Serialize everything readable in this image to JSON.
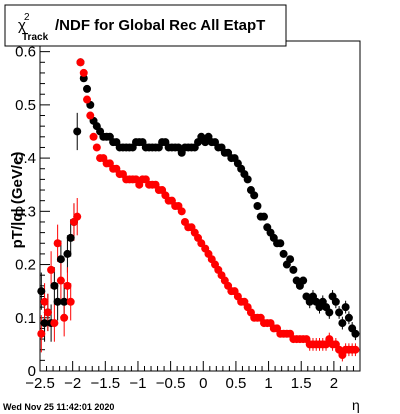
{
  "window": {
    "timestamp": "Wed Nov 25 11:42:01 2020"
  },
  "chart_data": {
    "type": "scatter",
    "title_base": "χ",
    "title_sup": "2",
    "title_sub": "Track",
    "title_rest": "/NDF for Global Rec All EtapT",
    "xlabel": "η",
    "ylabel": "pT/|q| (GeV/c)",
    "xlim": [
      -2.5,
      2.4
    ],
    "ylim": [
      0,
      0.62
    ],
    "xticks": [
      {
        "v": -2.5,
        "label": "−2.5"
      },
      {
        "v": -2,
        "label": "−2"
      },
      {
        "v": -1.5,
        "label": "−1.5"
      },
      {
        "v": -1,
        "label": "−1"
      },
      {
        "v": -0.5,
        "label": "−0.5"
      },
      {
        "v": 0,
        "label": "0"
      },
      {
        "v": 0.5,
        "label": "0.5"
      },
      {
        "v": 1,
        "label": "1"
      },
      {
        "v": 1.5,
        "label": "1.5"
      },
      {
        "v": 2,
        "label": "2"
      }
    ],
    "yticks": [
      {
        "v": 0,
        "label": "0"
      },
      {
        "v": 0.1,
        "label": "0.1"
      },
      {
        "v": 0.2,
        "label": "0.2"
      },
      {
        "v": 0.3,
        "label": "0.3"
      },
      {
        "v": 0.4,
        "label": "0.4"
      },
      {
        "v": 0.5,
        "label": "0.5"
      },
      {
        "v": 0.6,
        "label": "0.6"
      }
    ],
    "grid": false,
    "series": [
      {
        "color": "#000000",
        "x": [
          -2.48,
          -2.43,
          -2.38,
          -2.33,
          -2.28,
          -2.23,
          -2.18,
          -2.13,
          -2.08,
          -2.03,
          -1.98,
          -1.93,
          -1.88,
          -1.83,
          -1.78,
          -1.73,
          -1.68,
          -1.63,
          -1.58,
          -1.53,
          -1.48,
          -1.43,
          -1.38,
          -1.33,
          -1.28,
          -1.23,
          -1.18,
          -1.13,
          -1.08,
          -1.03,
          -0.98,
          -0.93,
          -0.88,
          -0.83,
          -0.78,
          -0.73,
          -0.68,
          -0.63,
          -0.58,
          -0.53,
          -0.48,
          -0.43,
          -0.38,
          -0.33,
          -0.28,
          -0.23,
          -0.18,
          -0.13,
          -0.08,
          -0.03,
          0.03,
          0.08,
          0.13,
          0.18,
          0.23,
          0.28,
          0.33,
          0.38,
          0.43,
          0.48,
          0.53,
          0.58,
          0.63,
          0.68,
          0.73,
          0.78,
          0.83,
          0.88,
          0.93,
          0.98,
          1.03,
          1.08,
          1.13,
          1.18,
          1.23,
          1.28,
          1.33,
          1.38,
          1.43,
          1.48,
          1.53,
          1.58,
          1.63,
          1.68,
          1.73,
          1.78,
          1.83,
          1.88,
          1.93,
          1.98,
          2.03,
          2.08,
          2.13,
          2.18,
          2.23,
          2.28,
          2.33
        ],
        "y": [
          0.15,
          0.09,
          0.11,
          0.09,
          0.16,
          0.13,
          0.21,
          0.13,
          0.22,
          0.25,
          0.28,
          0.45,
          0.58,
          0.55,
          0.53,
          0.5,
          0.47,
          0.46,
          0.45,
          0.44,
          0.44,
          0.44,
          0.43,
          0.43,
          0.42,
          0.42,
          0.42,
          0.42,
          0.42,
          0.43,
          0.43,
          0.43,
          0.42,
          0.42,
          0.42,
          0.42,
          0.42,
          0.43,
          0.43,
          0.42,
          0.42,
          0.42,
          0.42,
          0.41,
          0.42,
          0.42,
          0.42,
          0.42,
          0.43,
          0.44,
          0.43,
          0.44,
          0.43,
          0.43,
          0.42,
          0.42,
          0.41,
          0.41,
          0.4,
          0.4,
          0.39,
          0.38,
          0.37,
          0.36,
          0.34,
          0.33,
          0.31,
          0.29,
          0.29,
          0.27,
          0.26,
          0.25,
          0.24,
          0.24,
          0.22,
          0.2,
          0.21,
          0.19,
          0.17,
          0.16,
          0.17,
          0.14,
          0.13,
          0.14,
          0.13,
          0.12,
          0.13,
          0.12,
          0.11,
          0.14,
          0.13,
          0.11,
          0.09,
          0.12,
          0.1,
          0.08,
          0.07
        ]
      },
      {
        "color": "#ff0000",
        "x": [
          -2.48,
          -2.43,
          -2.38,
          -2.33,
          -2.28,
          -2.23,
          -2.18,
          -2.13,
          -2.08,
          -2.03,
          -1.98,
          -1.93,
          -1.88,
          -1.83,
          -1.78,
          -1.73,
          -1.68,
          -1.63,
          -1.58,
          -1.53,
          -1.48,
          -1.43,
          -1.38,
          -1.33,
          -1.28,
          -1.23,
          -1.18,
          -1.13,
          -1.08,
          -1.03,
          -0.98,
          -0.93,
          -0.88,
          -0.83,
          -0.78,
          -0.73,
          -0.68,
          -0.63,
          -0.58,
          -0.53,
          -0.48,
          -0.43,
          -0.38,
          -0.33,
          -0.28,
          -0.23,
          -0.18,
          -0.13,
          -0.08,
          -0.03,
          0.03,
          0.08,
          0.13,
          0.18,
          0.23,
          0.28,
          0.33,
          0.38,
          0.43,
          0.48,
          0.53,
          0.58,
          0.63,
          0.68,
          0.73,
          0.78,
          0.83,
          0.88,
          0.93,
          0.98,
          1.03,
          1.08,
          1.13,
          1.18,
          1.23,
          1.28,
          1.33,
          1.38,
          1.43,
          1.48,
          1.53,
          1.58,
          1.63,
          1.68,
          1.73,
          1.78,
          1.83,
          1.88,
          1.93,
          1.98,
          2.03,
          2.08,
          2.13,
          2.18,
          2.23,
          2.28,
          2.33
        ],
        "y": [
          0.07,
          0.13,
          0.11,
          0.19,
          0.09,
          0.24,
          0.17,
          0.1,
          0.16,
          0.13,
          0.28,
          0.29,
          0.58,
          0.56,
          0.51,
          0.48,
          0.44,
          0.42,
          0.4,
          0.4,
          0.39,
          0.39,
          0.38,
          0.38,
          0.37,
          0.37,
          0.36,
          0.36,
          0.36,
          0.36,
          0.35,
          0.36,
          0.36,
          0.35,
          0.35,
          0.35,
          0.34,
          0.34,
          0.33,
          0.32,
          0.32,
          0.31,
          0.31,
          0.3,
          0.28,
          0.27,
          0.27,
          0.26,
          0.25,
          0.24,
          0.23,
          0.22,
          0.21,
          0.2,
          0.19,
          0.18,
          0.17,
          0.16,
          0.15,
          0.15,
          0.14,
          0.13,
          0.13,
          0.12,
          0.11,
          0.1,
          0.1,
          0.1,
          0.09,
          0.09,
          0.09,
          0.08,
          0.08,
          0.07,
          0.07,
          0.07,
          0.07,
          0.06,
          0.06,
          0.06,
          0.06,
          0.06,
          0.05,
          0.05,
          0.05,
          0.05,
          0.05,
          0.05,
          0.06,
          0.05,
          0.05,
          0.04,
          0.03,
          0.04,
          0.04,
          0.04,
          0.04
        ]
      }
    ]
  }
}
